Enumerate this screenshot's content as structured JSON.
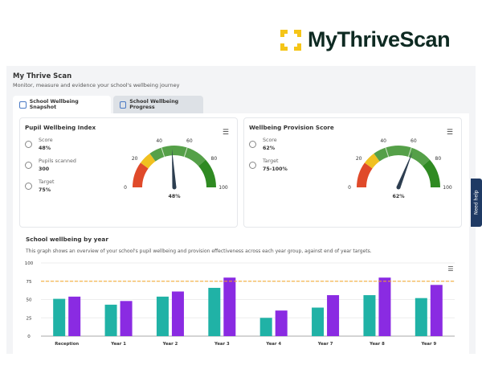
{
  "logo": {
    "text": "MyThriveScan",
    "color": "#f5c518"
  },
  "header": {
    "title": "My Thrive Scan",
    "subtitle": "Monitor, measure and evidence your school's wellbeing journey"
  },
  "tabs": [
    {
      "label": "School Wellbeing Snapshot",
      "active": true
    },
    {
      "label": "School Wellbeing Progress",
      "active": false
    }
  ],
  "cards": [
    {
      "title": "Pupil Wellbeing Index",
      "stats": [
        {
          "label": "Score",
          "value": "48%",
          "icon": "score-icon"
        },
        {
          "label": "Pupils scanned",
          "value": "300",
          "icon": "user-icon"
        },
        {
          "label": "Target",
          "value": "75%",
          "icon": "target-icon"
        }
      ],
      "gauge": {
        "value": 48,
        "label": "48%",
        "ticks": [
          "0",
          "20",
          "40",
          "60",
          "80",
          "100"
        ]
      }
    },
    {
      "title": "Wellbeing Provision Score",
      "stats": [
        {
          "label": "Score",
          "value": "62%",
          "icon": "score-icon"
        },
        {
          "label": "Target",
          "value": "75-100%",
          "icon": "target-icon"
        }
      ],
      "gauge": {
        "value": 62,
        "label": "62%",
        "ticks": [
          "0",
          "20",
          "40",
          "60",
          "80",
          "100"
        ]
      }
    }
  ],
  "gauge_bands": [
    {
      "from": 0,
      "to": 20,
      "color": "#e04a2a"
    },
    {
      "from": 20,
      "to": 30,
      "color": "#f0c020"
    },
    {
      "from": 30,
      "to": 77,
      "color": "#55a048"
    },
    {
      "from": 77,
      "to": 100,
      "color": "#2f8a22"
    }
  ],
  "chart_data": {
    "type": "bar",
    "title": "School wellbeing by year",
    "description": "This graph shows an overview of your school's pupil wellbeing and provision effectiveness across each year group, against end of year targets.",
    "categories": [
      "Reception",
      "Year 1",
      "Year 2",
      "Year 3",
      "Year 4",
      "Year 7",
      "Year 8",
      "Year 9"
    ],
    "series": [
      {
        "values": [
          51,
          43,
          54,
          66,
          25,
          39,
          56,
          52
        ],
        "color": "#20b2a6"
      },
      {
        "values": [
          54,
          48,
          61,
          80,
          35,
          56,
          80,
          70
        ],
        "color": "#8a2be2"
      }
    ],
    "target": 75,
    "target_color": "#f5a623",
    "ylim": [
      0,
      100
    ],
    "yticks": [
      "0",
      "25",
      "50",
      "75",
      "100"
    ],
    "grid": true
  },
  "help": {
    "label": "Need help"
  }
}
